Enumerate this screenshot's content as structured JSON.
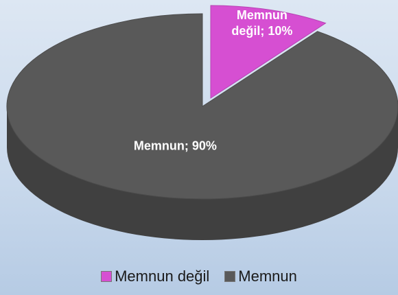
{
  "chart_data": {
    "type": "pie",
    "categories": [
      "Memnun değil",
      "Memnun"
    ],
    "values": [
      10,
      90
    ],
    "value_labels": [
      "Memnun değil; 10%",
      "Memnun; 90%"
    ],
    "colors": [
      "#d64fd2",
      "#595959"
    ],
    "legend": "bottom"
  }
}
